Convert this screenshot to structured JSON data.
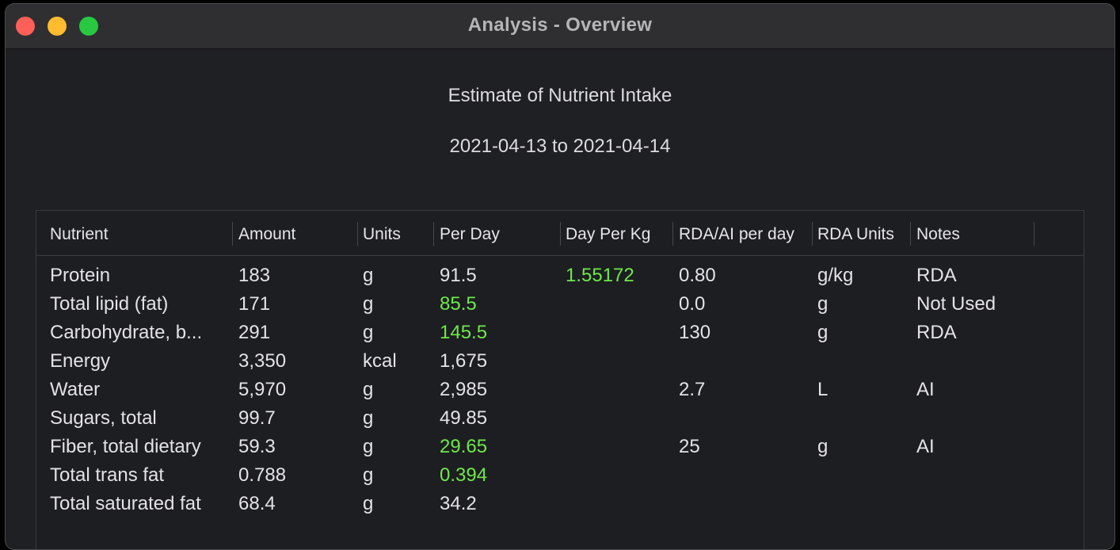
{
  "window": {
    "title": "Analysis - Overview"
  },
  "report": {
    "title": "Estimate of Nutrient Intake",
    "date_range": "2021-04-13 to 2021-04-14"
  },
  "colors": {
    "highlight": "#6ee84a",
    "close": "#fe5f57",
    "minimize": "#febc2e",
    "zoom": "#28c840"
  },
  "table": {
    "columns": [
      "Nutrient",
      "Amount",
      "Units",
      "Per Day",
      "Day Per Kg",
      "RDA/AI per day",
      "RDA Units",
      "Notes"
    ],
    "rows": [
      [
        "Protein",
        "183",
        "g",
        "91.5",
        "1.55172",
        "0.80",
        "g/kg",
        "RDA"
      ],
      [
        "Total lipid (fat)",
        "171",
        "g",
        "85.5",
        "",
        "0.0",
        "g",
        "Not Used"
      ],
      [
        "Carbohydrate, b...",
        "291",
        "g",
        "145.5",
        "",
        "130",
        "g",
        "RDA"
      ],
      [
        "Energy",
        "3,350",
        "kcal",
        "1,675",
        "",
        "",
        "",
        ""
      ],
      [
        "Water",
        "5,970",
        "g",
        "2,985",
        "",
        "2.7",
        "L",
        "AI"
      ],
      [
        "Sugars, total",
        "99.7",
        "g",
        "49.85",
        "",
        "",
        "",
        ""
      ],
      [
        "Fiber, total dietary",
        "59.3",
        "g",
        "29.65",
        "",
        "25",
        "g",
        "AI"
      ],
      [
        "Total trans fat",
        "0.788",
        "g",
        "0.394",
        "",
        "",
        "",
        ""
      ],
      [
        "Total saturated fat",
        "68.4",
        "g",
        "34.2",
        "",
        "",
        "",
        ""
      ]
    ],
    "highlighted_cells": [
      [
        0,
        4
      ],
      [
        1,
        3
      ],
      [
        2,
        3
      ],
      [
        6,
        3
      ],
      [
        7,
        3
      ]
    ]
  }
}
